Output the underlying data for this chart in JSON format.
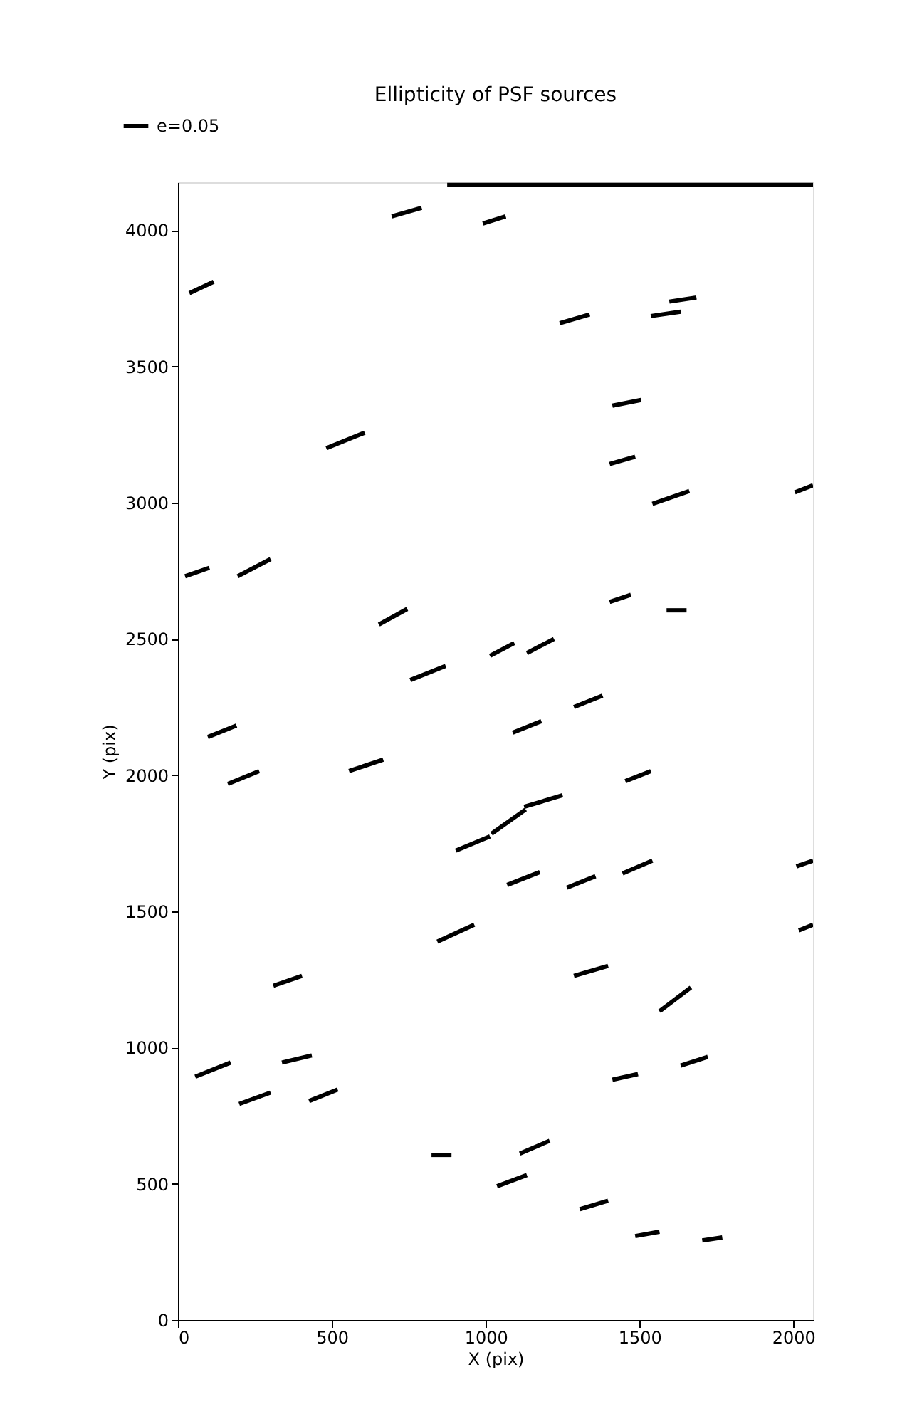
{
  "chart_data": {
    "type": "line",
    "title": "Ellipticity of PSF sources",
    "xlabel": "X (pix)",
    "ylabel": "Y (pix)",
    "xlim": [
      0,
      2064
    ],
    "ylim": [
      0,
      4176
    ],
    "xticks": [
      0,
      500,
      1000,
      1500,
      2000
    ],
    "yticks": [
      0,
      500,
      1000,
      1500,
      2000,
      2500,
      3000,
      3500,
      4000
    ],
    "grid": false,
    "legend": "top left",
    "marker": "none",
    "line_style": "solid",
    "series": [
      {
        "name": "e=0.05",
        "color": "#000000",
        "x": [
          875,
          2064,
          null,
          695,
          792,
          null,
          991,
          1065,
          null,
          37,
          116,
          null,
          1241,
          1338,
          null,
          1537,
          1634,
          null,
          1597,
          1685,
          null,
          482,
          607,
          null,
          1412,
          1505,
          null,
          1403,
          1486,
          null,
          1542,
          1662,
          null,
          2005,
          2064,
          null,
          23,
          102,
          null,
          194,
          301,
          null,
          653,
          745,
          null,
          1403,
          1472,
          null,
          1588,
          1653,
          null,
          1014,
          1093,
          null,
          1134,
          1222,
          null,
          755,
          870,
          null,
          1287,
          1380,
          null,
          1088,
          1181,
          null,
          97,
          190,
          null,
          162,
          264,
          null,
          556,
          667,
          null,
          1454,
          1537,
          null,
          1125,
          1250,
          null,
          1019,
          1130,
          null,
          903,
          1014,
          null,
          1070,
          1176,
          null,
          1264,
          1357,
          null,
          1445,
          1542,
          null,
          2010,
          2064,
          null,
          843,
          963,
          null,
          2018,
          2064,
          null,
          1287,
          1398,
          null,
          310,
          403,
          null,
          1565,
          1667,
          null,
          56,
          171,
          null,
          338,
          435,
          null,
          426,
          519,
          null,
          199,
          301,
          null,
          1412,
          1495,
          null,
          1634,
          1722,
          null,
          824,
          889,
          null,
          1111,
          1208,
          null,
          1037,
          1134,
          null,
          1306,
          1398,
          null,
          1486,
          1565,
          null,
          1704,
          1769
        ],
        "values": [
          4166,
          4166,
          null,
          4051,
          4082,
          null,
          4025,
          4051,
          null,
          3769,
          3811,
          null,
          3659,
          3691,
          null,
          3685,
          3701,
          null,
          3738,
          3753,
          null,
          3200,
          3257,
          null,
          3356,
          3377,
          null,
          3142,
          3169,
          null,
          2996,
          3043,
          null,
          3038,
          3064,
          null,
          2730,
          2761,
          null,
          2730,
          2793,
          null,
          2553,
          2610,
          null,
          2636,
          2662,
          null,
          2605,
          2605,
          null,
          2438,
          2485,
          null,
          2448,
          2500,
          null,
          2349,
          2401,
          null,
          2250,
          2292,
          null,
          2156,
          2198,
          null,
          2140,
          2182,
          null,
          1968,
          2015,
          null,
          2015,
          2057,
          null,
          1978,
          2015,
          null,
          1884,
          1926,
          null,
          1785,
          1874,
          null,
          1723,
          1775,
          null,
          1597,
          1644,
          null,
          1587,
          1629,
          null,
          1639,
          1686,
          null,
          1665,
          1686,
          null,
          1389,
          1451,
          null,
          1430,
          1451,
          null,
          1263,
          1300,
          null,
          1227,
          1263,
          null,
          1133,
          1221,
          null,
          893,
          945,
          null,
          945,
          971,
          null,
          804,
          846,
          null,
          793,
          835,
          null,
          882,
          903,
          null,
          934,
          966,
          null,
          606,
          606,
          null,
          611,
          658,
          null,
          491,
          532,
          null,
          407,
          438,
          null,
          308,
          324,
          null,
          292,
          303
        ]
      }
    ]
  }
}
